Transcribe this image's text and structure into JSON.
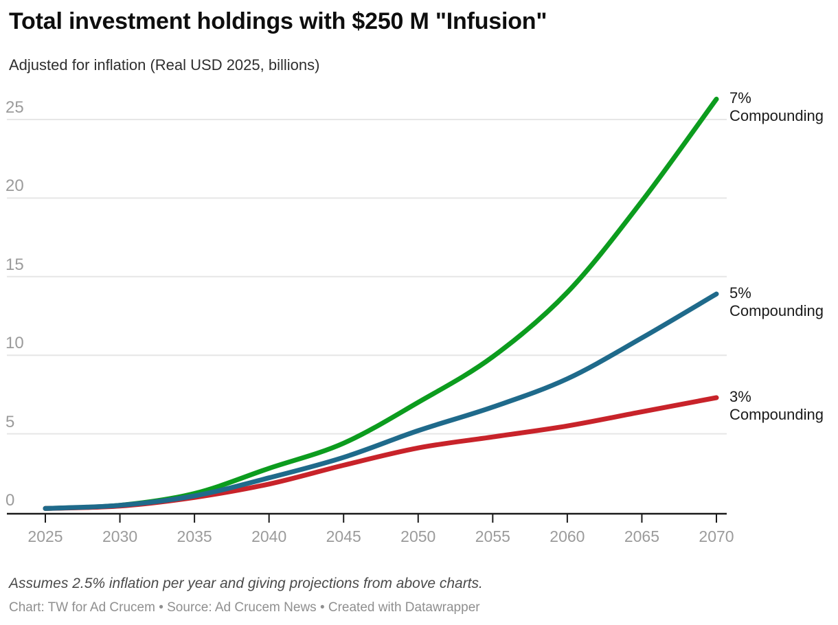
{
  "header": {
    "title": "Total investment holdings with $250 M \"Infusion\"",
    "subtitle": "Adjusted for inflation (Real USD 2025, billions)"
  },
  "footer": {
    "note": "Assumes 2.5% inflation per year and giving projections from above charts.",
    "credit": "Chart: TW for Ad Crucem • Source: Ad Crucem News • Created with Datawrapper"
  },
  "colors": {
    "green_7pct": "#0c9c1e",
    "blue_5pct": "#1f6a8b",
    "red_3pct": "#c8232a",
    "gridline": "#e6e6e6",
    "axis_line": "#1a1a1a",
    "tick_label": "#9b9b9b"
  },
  "chart_data": {
    "type": "line",
    "title": "Total investment holdings with $250 M \"Infusion\"",
    "subtitle": "Adjusted for inflation (Real USD 2025, billions)",
    "xlabel": "",
    "ylabel": "Real USD 2025, billions",
    "x": [
      2025,
      2030,
      2035,
      2040,
      2045,
      2050,
      2055,
      2060,
      2065,
      2070
    ],
    "xlim": [
      2025,
      2070
    ],
    "ylim": [
      0,
      26.5
    ],
    "yticks": [
      0,
      5,
      10,
      15,
      20,
      25
    ],
    "grid": "horizontal",
    "legend_position": "labels-at-line-ends",
    "series": [
      {
        "name": "7% Compounding",
        "label_lines": [
          "7%",
          "Compounding"
        ],
        "color": "#0c9c1e",
        "values": [
          0.25,
          0.45,
          1.2,
          2.8,
          4.4,
          7.0,
          9.9,
          14.0,
          19.8,
          26.3
        ]
      },
      {
        "name": "3% Compounding",
        "label_lines": [
          "3%",
          "Compounding"
        ],
        "color": "#c8232a",
        "values": [
          0.25,
          0.4,
          0.95,
          1.8,
          3.0,
          4.1,
          4.8,
          5.5,
          6.4,
          7.3
        ]
      },
      {
        "name": "5% Compounding",
        "label_lines": [
          "5%",
          "Compounding"
        ],
        "color": "#1f6a8b",
        "values": [
          0.25,
          0.45,
          1.05,
          2.2,
          3.5,
          5.2,
          6.7,
          8.5,
          11.1,
          13.9
        ]
      }
    ]
  }
}
